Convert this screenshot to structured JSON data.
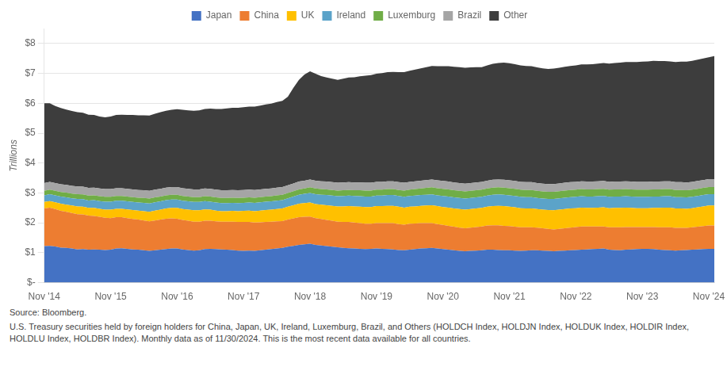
{
  "chart_data": {
    "type": "area",
    "stacked": true,
    "ylabel": "Trillions",
    "annotations": [
      "Source: Bloomberg.",
      "U.S. Treasury securities held by foreign holders for China, Japan, UK, Ireland, Luxemburg, Brazil, and Others (HOLDCH Index, HOLDJN Index, HOLDUK Index, HOLDIR Index, HOLDLU Index, HOLDBR Index). Monthly data as of 11/30/2024. This is the most recent data available for all countries."
    ],
    "legend": "top",
    "grid": "y",
    "ylim": [
      0,
      8.5
    ],
    "yticks": [
      {
        "value": 0,
        "label": "$-"
      },
      {
        "value": 1,
        "label": "$1"
      },
      {
        "value": 2,
        "label": "$2"
      },
      {
        "value": 3,
        "label": "$3"
      },
      {
        "value": 4,
        "label": "$4"
      },
      {
        "value": 5,
        "label": "$5"
      },
      {
        "value": 6,
        "label": "$6"
      },
      {
        "value": 7,
        "label": "$7"
      },
      {
        "value": 8,
        "label": "$8"
      }
    ],
    "categories": [
      "Nov '14",
      null,
      null,
      null,
      null,
      null,
      null,
      null,
      null,
      null,
      null,
      null,
      "Nov '15",
      null,
      null,
      null,
      null,
      null,
      null,
      null,
      null,
      null,
      null,
      null,
      "Nov '16",
      null,
      null,
      null,
      null,
      null,
      null,
      null,
      null,
      null,
      null,
      null,
      "Nov '17",
      null,
      null,
      null,
      null,
      null,
      null,
      null,
      null,
      null,
      null,
      null,
      "Nov '18",
      null,
      null,
      null,
      null,
      null,
      null,
      null,
      null,
      null,
      null,
      null,
      "Nov '19",
      null,
      null,
      null,
      null,
      null,
      null,
      null,
      null,
      null,
      null,
      null,
      "Nov '20",
      null,
      null,
      null,
      null,
      null,
      null,
      null,
      null,
      null,
      null,
      null,
      "Nov '21",
      null,
      null,
      null,
      null,
      null,
      null,
      null,
      null,
      null,
      null,
      null,
      "Nov '22",
      null,
      null,
      null,
      null,
      null,
      null,
      null,
      null,
      null,
      null,
      null,
      "Nov '23",
      null,
      null,
      null,
      null,
      null,
      null,
      null,
      null,
      null,
      null,
      null,
      "Nov '24",
      null
    ],
    "series": [
      {
        "name": "Japan",
        "color": "#4472C4",
        "values": [
          1.22,
          1.23,
          1.21,
          1.17,
          1.16,
          1.14,
          1.11,
          1.12,
          1.1,
          1.11,
          1.1,
          1.09,
          1.1,
          1.14,
          1.15,
          1.13,
          1.11,
          1.1,
          1.08,
          1.06,
          1.08,
          1.1,
          1.12,
          1.14,
          1.14,
          1.11,
          1.09,
          1.07,
          1.08,
          1.12,
          1.13,
          1.12,
          1.11,
          1.1,
          1.09,
          1.07,
          1.06,
          1.07,
          1.06,
          1.08,
          1.1,
          1.12,
          1.14,
          1.16,
          1.2,
          1.23,
          1.26,
          1.28,
          1.3,
          1.26,
          1.24,
          1.22,
          1.2,
          1.18,
          1.16,
          1.15,
          1.14,
          1.13,
          1.12,
          1.13,
          1.14,
          1.13,
          1.12,
          1.11,
          1.09,
          1.08,
          1.1,
          1.12,
          1.14,
          1.15,
          1.16,
          1.14,
          1.12,
          1.1,
          1.08,
          1.06,
          1.05,
          1.06,
          1.07,
          1.08,
          1.1,
          1.1,
          1.09,
          1.08,
          1.08,
          1.07,
          1.06,
          1.07,
          1.08,
          1.08,
          1.07,
          1.06,
          1.05,
          1.06,
          1.07,
          1.08,
          1.09,
          1.1,
          1.11,
          1.12,
          1.13,
          1.14,
          1.1,
          1.09,
          1.08,
          1.1,
          1.11,
          1.12,
          1.13,
          1.13,
          1.12,
          1.1,
          1.09,
          1.08,
          1.07,
          1.08,
          1.09,
          1.1,
          1.11,
          1.12,
          1.13,
          1.13
        ]
      },
      {
        "name": "China",
        "color": "#ED7D31",
        "values": [
          1.26,
          1.28,
          1.25,
          1.23,
          1.21,
          1.19,
          1.18,
          1.16,
          1.14,
          1.12,
          1.1,
          1.08,
          1.06,
          1.05,
          1.04,
          1.03,
          1.02,
          1.01,
          1.0,
          0.99,
          1.0,
          1.01,
          1.02,
          1.01,
          1.0,
          0.99,
          0.98,
          0.97,
          0.96,
          0.95,
          0.94,
          0.93,
          0.93,
          0.94,
          0.95,
          0.96,
          0.97,
          0.96,
          0.95,
          0.94,
          0.93,
          0.92,
          0.91,
          0.9,
          0.91,
          0.92,
          0.93,
          0.92,
          0.91,
          0.9,
          0.89,
          0.88,
          0.87,
          0.86,
          0.87,
          0.88,
          0.87,
          0.86,
          0.85,
          0.84,
          0.85,
          0.86,
          0.87,
          0.88,
          0.87,
          0.86,
          0.87,
          0.86,
          0.85,
          0.84,
          0.83,
          0.82,
          0.81,
          0.8,
          0.79,
          0.78,
          0.77,
          0.78,
          0.79,
          0.8,
          0.81,
          0.82,
          0.83,
          0.82,
          0.81,
          0.8,
          0.79,
          0.78,
          0.77,
          0.76,
          0.75,
          0.74,
          0.73,
          0.74,
          0.75,
          0.76,
          0.77,
          0.78,
          0.77,
          0.76,
          0.75,
          0.74,
          0.75,
          0.76,
          0.77,
          0.76,
          0.75,
          0.74,
          0.73,
          0.73,
          0.74,
          0.75,
          0.76,
          0.77,
          0.76,
          0.75,
          0.74,
          0.75,
          0.76,
          0.77,
          0.78,
          0.78
        ]
      },
      {
        "name": "UK",
        "color": "#FFC000",
        "values": [
          0.22,
          0.22,
          0.23,
          0.24,
          0.24,
          0.25,
          0.26,
          0.26,
          0.26,
          0.27,
          0.27,
          0.27,
          0.28,
          0.28,
          0.28,
          0.29,
          0.3,
          0.3,
          0.31,
          0.32,
          0.33,
          0.33,
          0.34,
          0.35,
          0.36,
          0.36,
          0.37,
          0.38,
          0.38,
          0.38,
          0.37,
          0.36,
          0.35,
          0.35,
          0.36,
          0.36,
          0.37,
          0.38,
          0.38,
          0.39,
          0.4,
          0.4,
          0.41,
          0.42,
          0.43,
          0.44,
          0.45,
          0.46,
          0.47,
          0.47,
          0.48,
          0.49,
          0.5,
          0.51,
          0.52,
          0.53,
          0.54,
          0.55,
          0.56,
          0.56,
          0.57,
          0.57,
          0.58,
          0.58,
          0.58,
          0.57,
          0.57,
          0.57,
          0.58,
          0.59,
          0.6,
          0.6,
          0.6,
          0.61,
          0.61,
          0.62,
          0.62,
          0.62,
          0.62,
          0.62,
          0.63,
          0.64,
          0.65,
          0.66,
          0.65,
          0.65,
          0.64,
          0.63,
          0.63,
          0.62,
          0.62,
          0.63,
          0.64,
          0.64,
          0.64,
          0.64,
          0.63,
          0.63,
          0.62,
          0.62,
          0.63,
          0.64,
          0.64,
          0.65,
          0.65,
          0.65,
          0.64,
          0.63,
          0.63,
          0.63,
          0.64,
          0.65,
          0.66,
          0.66,
          0.65,
          0.65,
          0.64,
          0.64,
          0.65,
          0.66,
          0.67,
          0.67
        ]
      },
      {
        "name": "Ireland",
        "color": "#5BA3C9",
        "values": [
          0.22,
          0.23,
          0.23,
          0.24,
          0.24,
          0.24,
          0.25,
          0.25,
          0.25,
          0.26,
          0.26,
          0.27,
          0.27,
          0.27,
          0.27,
          0.27,
          0.27,
          0.27,
          0.28,
          0.28,
          0.28,
          0.28,
          0.28,
          0.28,
          0.28,
          0.28,
          0.28,
          0.28,
          0.28,
          0.28,
          0.27,
          0.27,
          0.27,
          0.27,
          0.27,
          0.27,
          0.27,
          0.27,
          0.28,
          0.28,
          0.28,
          0.28,
          0.28,
          0.28,
          0.28,
          0.29,
          0.3,
          0.31,
          0.32,
          0.33,
          0.33,
          0.34,
          0.34,
          0.34,
          0.35,
          0.35,
          0.35,
          0.35,
          0.35,
          0.35,
          0.35,
          0.35,
          0.36,
          0.36,
          0.36,
          0.36,
          0.36,
          0.36,
          0.36,
          0.36,
          0.36,
          0.36,
          0.37,
          0.37,
          0.37,
          0.37,
          0.37,
          0.37,
          0.37,
          0.37,
          0.37,
          0.38,
          0.38,
          0.38,
          0.38,
          0.38,
          0.38,
          0.38,
          0.38,
          0.37,
          0.37,
          0.37,
          0.38,
          0.38,
          0.38,
          0.38,
          0.38,
          0.38,
          0.38,
          0.38,
          0.38,
          0.38,
          0.38,
          0.38,
          0.38,
          0.38,
          0.38,
          0.38,
          0.38,
          0.38,
          0.38,
          0.38,
          0.38,
          0.38,
          0.38,
          0.38,
          0.38,
          0.38,
          0.38,
          0.38,
          0.38,
          0.38
        ]
      },
      {
        "name": "Luxemburg",
        "color": "#70AD47",
        "values": [
          0.15,
          0.15,
          0.15,
          0.15,
          0.16,
          0.16,
          0.16,
          0.16,
          0.16,
          0.16,
          0.16,
          0.16,
          0.16,
          0.16,
          0.16,
          0.16,
          0.16,
          0.16,
          0.16,
          0.16,
          0.16,
          0.16,
          0.16,
          0.16,
          0.16,
          0.16,
          0.16,
          0.16,
          0.16,
          0.16,
          0.17,
          0.17,
          0.17,
          0.17,
          0.17,
          0.17,
          0.17,
          0.17,
          0.17,
          0.17,
          0.17,
          0.17,
          0.18,
          0.18,
          0.18,
          0.18,
          0.18,
          0.18,
          0.19,
          0.19,
          0.19,
          0.19,
          0.19,
          0.19,
          0.19,
          0.19,
          0.19,
          0.2,
          0.2,
          0.2,
          0.2,
          0.2,
          0.2,
          0.2,
          0.2,
          0.21,
          0.21,
          0.22,
          0.22,
          0.23,
          0.24,
          0.24,
          0.24,
          0.24,
          0.24,
          0.24,
          0.24,
          0.24,
          0.24,
          0.24,
          0.24,
          0.24,
          0.24,
          0.24,
          0.24,
          0.24,
          0.24,
          0.24,
          0.24,
          0.24,
          0.24,
          0.24,
          0.24,
          0.24,
          0.24,
          0.24,
          0.24,
          0.24,
          0.24,
          0.24,
          0.24,
          0.24,
          0.24,
          0.24,
          0.24,
          0.24,
          0.24,
          0.24,
          0.24,
          0.24,
          0.24,
          0.24,
          0.24,
          0.24,
          0.24,
          0.24,
          0.24,
          0.24,
          0.24,
          0.24,
          0.24,
          0.24
        ]
      },
      {
        "name": "Brazil",
        "color": "#A5A5A5",
        "values": [
          0.26,
          0.26,
          0.26,
          0.26,
          0.26,
          0.26,
          0.26,
          0.26,
          0.26,
          0.26,
          0.26,
          0.26,
          0.26,
          0.26,
          0.26,
          0.26,
          0.26,
          0.26,
          0.26,
          0.26,
          0.26,
          0.26,
          0.26,
          0.26,
          0.26,
          0.26,
          0.26,
          0.26,
          0.26,
          0.26,
          0.26,
          0.26,
          0.26,
          0.26,
          0.26,
          0.26,
          0.26,
          0.26,
          0.26,
          0.26,
          0.26,
          0.26,
          0.26,
          0.26,
          0.26,
          0.26,
          0.26,
          0.26,
          0.26,
          0.26,
          0.26,
          0.26,
          0.26,
          0.26,
          0.26,
          0.26,
          0.26,
          0.26,
          0.26,
          0.26,
          0.26,
          0.26,
          0.26,
          0.26,
          0.26,
          0.26,
          0.26,
          0.26,
          0.26,
          0.26,
          0.26,
          0.26,
          0.26,
          0.26,
          0.26,
          0.26,
          0.26,
          0.26,
          0.26,
          0.26,
          0.26,
          0.26,
          0.26,
          0.26,
          0.26,
          0.26,
          0.26,
          0.26,
          0.26,
          0.26,
          0.26,
          0.26,
          0.26,
          0.26,
          0.26,
          0.26,
          0.26,
          0.26,
          0.26,
          0.26,
          0.26,
          0.26,
          0.26,
          0.26,
          0.26,
          0.26,
          0.26,
          0.26,
          0.26,
          0.26,
          0.26,
          0.26,
          0.26,
          0.26,
          0.26,
          0.26,
          0.26,
          0.26,
          0.26,
          0.26,
          0.26,
          0.26
        ]
      },
      {
        "name": "Other",
        "color": "#3D3D3D",
        "values": [
          2.67,
          2.63,
          2.58,
          2.55,
          2.52,
          2.5,
          2.48,
          2.47,
          2.45,
          2.43,
          2.41,
          2.4,
          2.43,
          2.45,
          2.46,
          2.47,
          2.49,
          2.5,
          2.51,
          2.52,
          2.54,
          2.56,
          2.57,
          2.58,
          2.6,
          2.62,
          2.62,
          2.63,
          2.64,
          2.66,
          2.68,
          2.7,
          2.72,
          2.74,
          2.75,
          2.76,
          2.77,
          2.78,
          2.79,
          2.8,
          2.82,
          2.84,
          2.86,
          2.88,
          2.96,
          3.2,
          3.4,
          3.55,
          3.62,
          3.58,
          3.52,
          3.48,
          3.46,
          3.44,
          3.47,
          3.5,
          3.52,
          3.55,
          3.58,
          3.6,
          3.62,
          3.64,
          3.65,
          3.66,
          3.68,
          3.7,
          3.72,
          3.74,
          3.76,
          3.78,
          3.8,
          3.82,
          3.84,
          3.86,
          3.87,
          3.88,
          3.88,
          3.87,
          3.86,
          3.84,
          3.86,
          3.88,
          3.9,
          3.92,
          3.92,
          3.91,
          3.9,
          3.89,
          3.88,
          3.87,
          3.86,
          3.85,
          3.86,
          3.87,
          3.88,
          3.89,
          3.9,
          3.91,
          3.92,
          3.93,
          3.94,
          3.95,
          3.96,
          3.97,
          3.98,
          3.99,
          4.0,
          4.01,
          4.02,
          4.03,
          4.04,
          4.03,
          4.02,
          4.01,
          4.02,
          4.03,
          4.04,
          4.05,
          4.06,
          4.07,
          4.08,
          4.12
        ]
      }
    ]
  }
}
